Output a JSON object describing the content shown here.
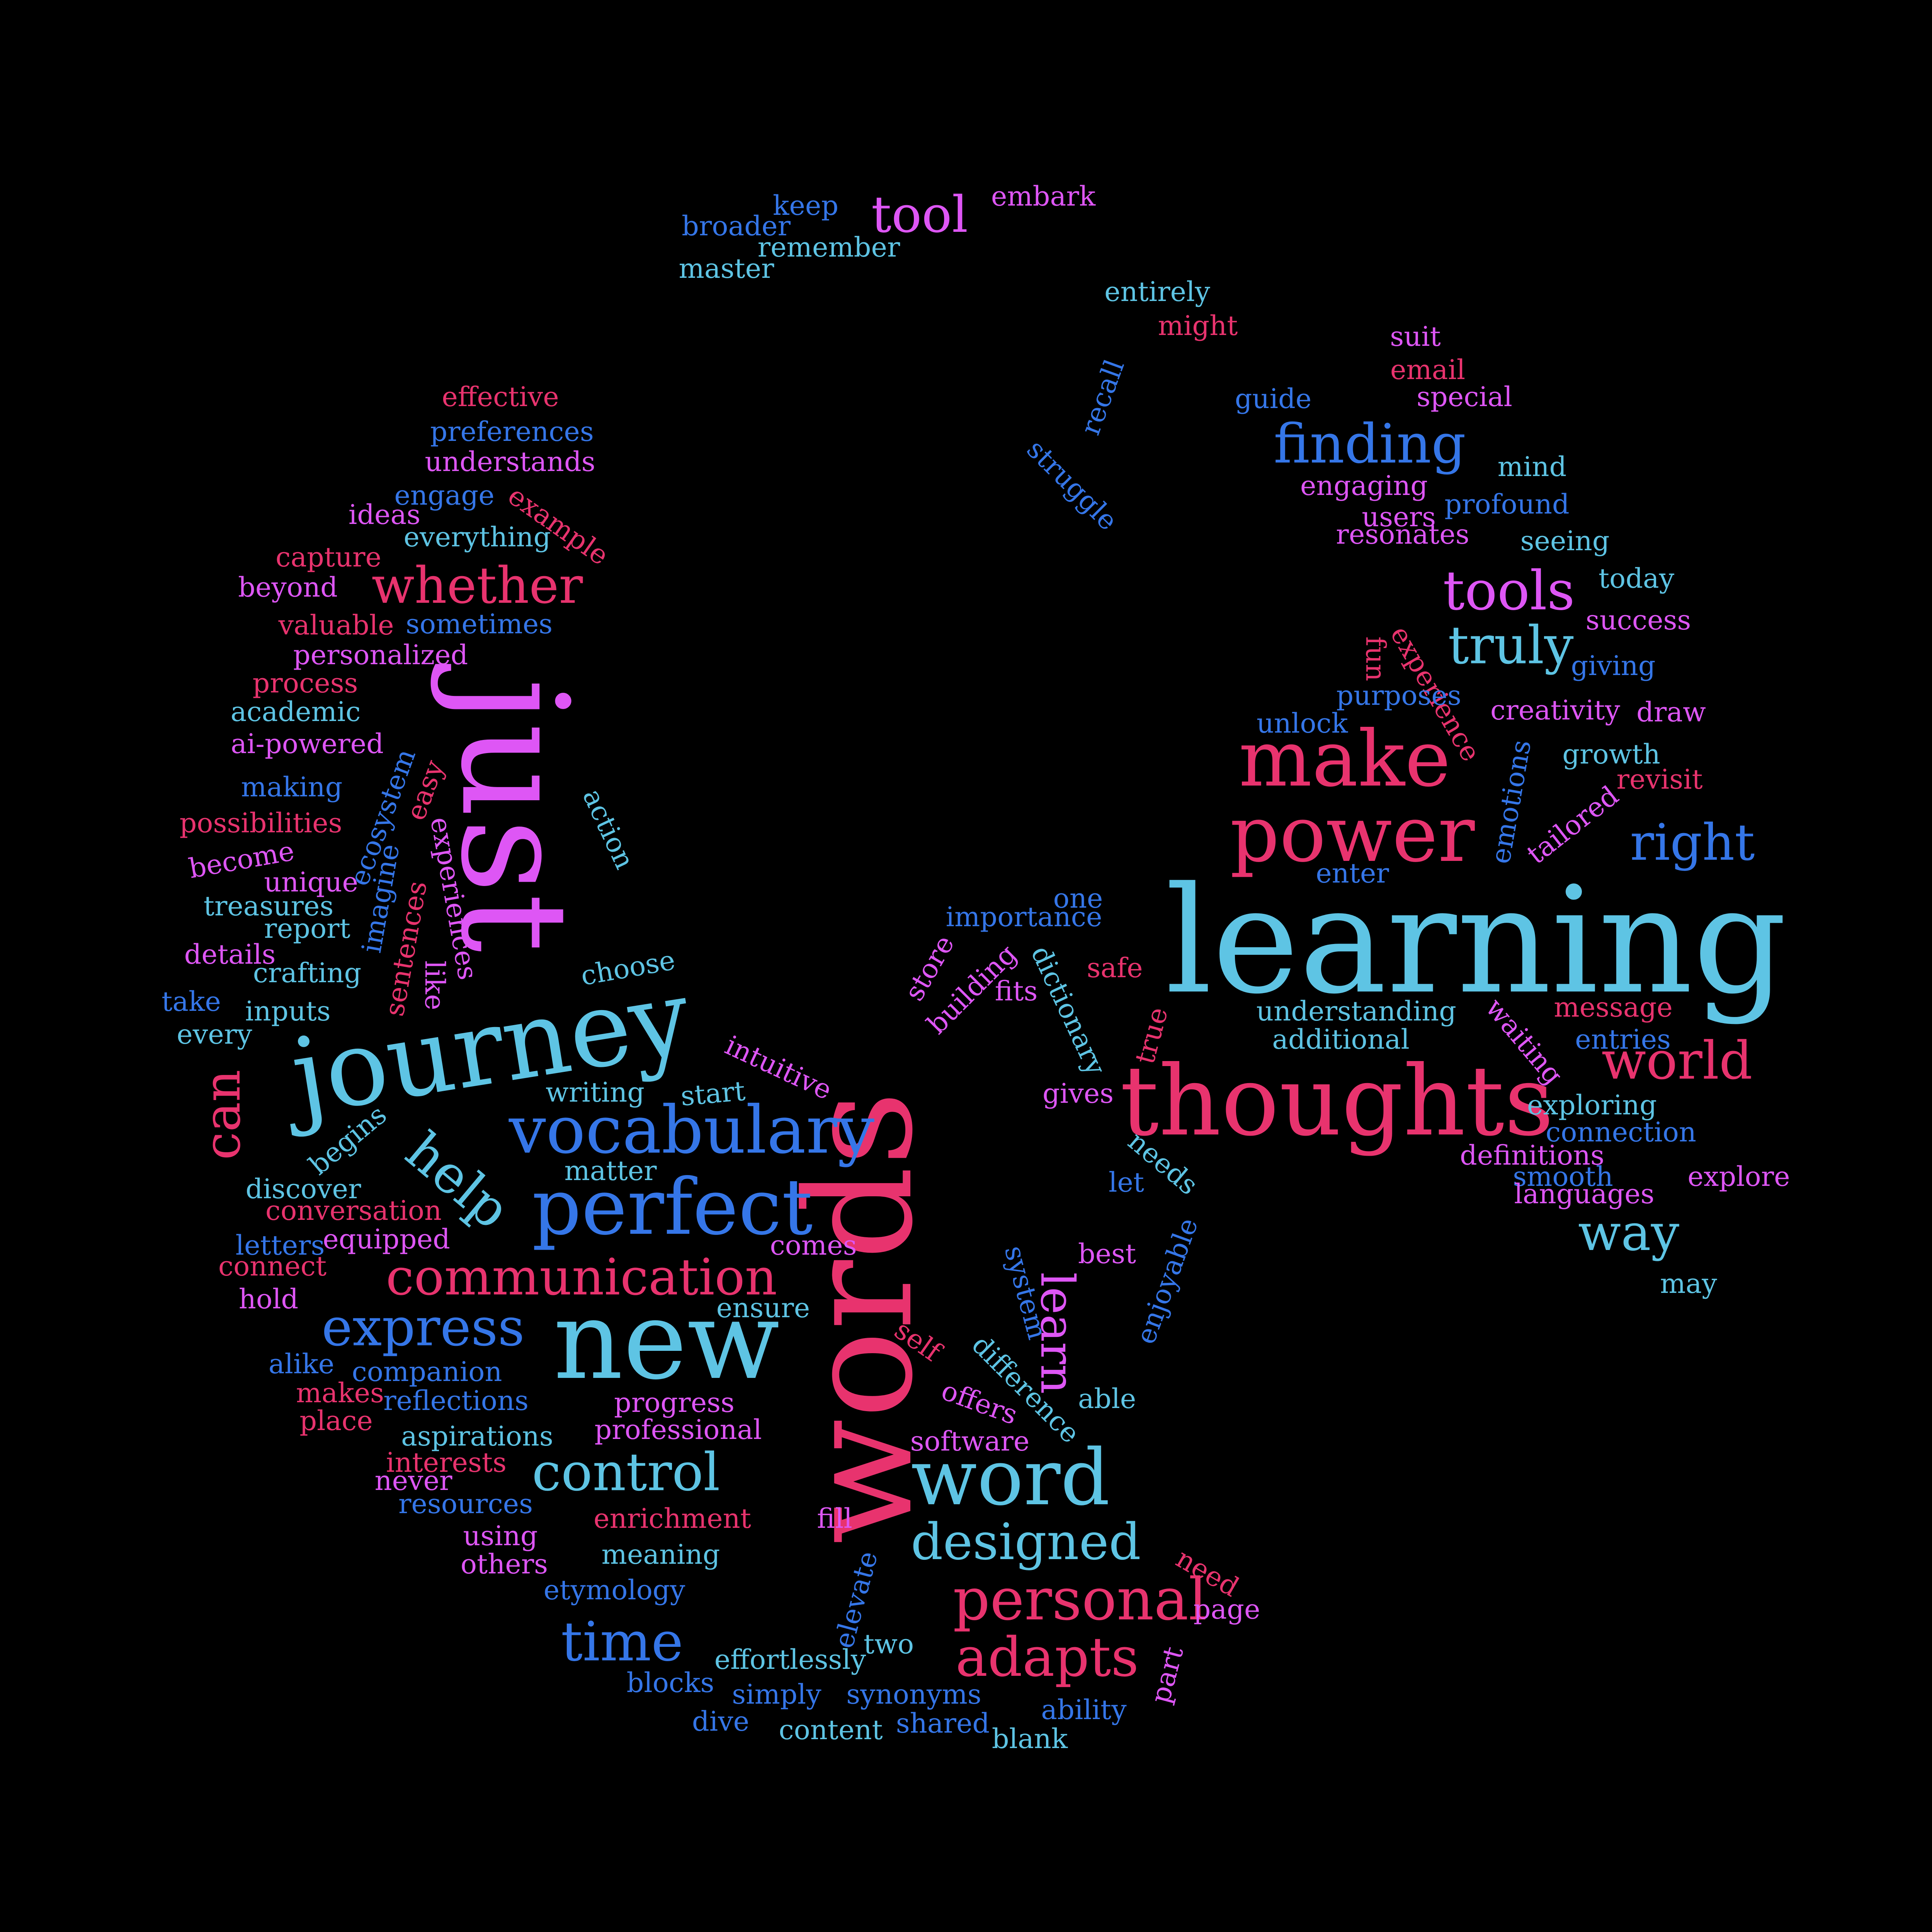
{
  "palette": {
    "background": "#000000",
    "sky": "#5ec4e4",
    "blue": "#3576e8",
    "pink": "#e8336e",
    "magenta": "#de56f5"
  },
  "words": [
    {
      "text": "learning",
      "color": "sky"
    },
    {
      "text": "words",
      "color": "pink"
    },
    {
      "text": "just",
      "color": "magenta"
    },
    {
      "text": "journey",
      "color": "sky"
    },
    {
      "text": "thoughts",
      "color": "pink"
    },
    {
      "text": "new",
      "color": "sky"
    },
    {
      "text": "perfect",
      "color": "blue"
    },
    {
      "text": "vocabulary",
      "color": "blue"
    },
    {
      "text": "make",
      "color": "pink"
    },
    {
      "text": "power",
      "color": "pink"
    },
    {
      "text": "word",
      "color": "sky"
    },
    {
      "text": "communication",
      "color": "pink"
    },
    {
      "text": "express",
      "color": "blue"
    },
    {
      "text": "control",
      "color": "sky"
    },
    {
      "text": "designed",
      "color": "sky"
    },
    {
      "text": "personal",
      "color": "pink"
    },
    {
      "text": "adapts",
      "color": "pink"
    },
    {
      "text": "time",
      "color": "blue"
    },
    {
      "text": "whether",
      "color": "pink"
    },
    {
      "text": "finding",
      "color": "blue"
    },
    {
      "text": "tools",
      "color": "magenta"
    },
    {
      "text": "truly",
      "color": "sky"
    },
    {
      "text": "right",
      "color": "blue"
    },
    {
      "text": "world",
      "color": "pink"
    },
    {
      "text": "way",
      "color": "sky"
    },
    {
      "text": "tool",
      "color": "magenta"
    },
    {
      "text": "can",
      "color": "pink"
    },
    {
      "text": "help",
      "color": "sky"
    },
    {
      "text": "learn",
      "color": "magenta"
    },
    {
      "text": "broader",
      "color": "blue"
    },
    {
      "text": "keep",
      "color": "blue"
    },
    {
      "text": "remember",
      "color": "sky"
    },
    {
      "text": "master",
      "color": "sky"
    },
    {
      "text": "embark",
      "color": "magenta"
    },
    {
      "text": "entirely",
      "color": "sky"
    },
    {
      "text": "might",
      "color": "pink"
    },
    {
      "text": "recall",
      "color": "blue"
    },
    {
      "text": "struggle",
      "color": "blue"
    },
    {
      "text": "suit",
      "color": "magenta"
    },
    {
      "text": "email",
      "color": "pink"
    },
    {
      "text": "special",
      "color": "magenta"
    },
    {
      "text": "guide",
      "color": "blue"
    },
    {
      "text": "mind",
      "color": "sky"
    },
    {
      "text": "engaging",
      "color": "magenta"
    },
    {
      "text": "profound",
      "color": "blue"
    },
    {
      "text": "users",
      "color": "magenta"
    },
    {
      "text": "resonates",
      "color": "magenta"
    },
    {
      "text": "seeing",
      "color": "sky"
    },
    {
      "text": "today",
      "color": "sky"
    },
    {
      "text": "success",
      "color": "magenta"
    },
    {
      "text": "giving",
      "color": "blue"
    },
    {
      "text": "fun",
      "color": "pink"
    },
    {
      "text": "experience",
      "color": "pink"
    },
    {
      "text": "purposes",
      "color": "blue"
    },
    {
      "text": "unlock",
      "color": "blue"
    },
    {
      "text": "creativity",
      "color": "magenta"
    },
    {
      "text": "draw",
      "color": "magenta"
    },
    {
      "text": "growth",
      "color": "sky"
    },
    {
      "text": "revisit",
      "color": "pink"
    },
    {
      "text": "emotions",
      "color": "blue"
    },
    {
      "text": "tailored",
      "color": "magenta"
    },
    {
      "text": "enter",
      "color": "blue"
    },
    {
      "text": "effective",
      "color": "pink"
    },
    {
      "text": "preferences",
      "color": "blue"
    },
    {
      "text": "understands",
      "color": "magenta"
    },
    {
      "text": "engage",
      "color": "blue"
    },
    {
      "text": "example",
      "color": "pink"
    },
    {
      "text": "ideas",
      "color": "magenta"
    },
    {
      "text": "everything",
      "color": "sky"
    },
    {
      "text": "capture",
      "color": "pink"
    },
    {
      "text": "beyond",
      "color": "magenta"
    },
    {
      "text": "valuable",
      "color": "pink"
    },
    {
      "text": "sometimes",
      "color": "blue"
    },
    {
      "text": "personalized",
      "color": "magenta"
    },
    {
      "text": "process",
      "color": "pink"
    },
    {
      "text": "academic",
      "color": "sky"
    },
    {
      "text": "ai-powered",
      "color": "magenta"
    },
    {
      "text": "making",
      "color": "blue"
    },
    {
      "text": "possibilities",
      "color": "pink"
    },
    {
      "text": "become",
      "color": "magenta"
    },
    {
      "text": "unique",
      "color": "magenta"
    },
    {
      "text": "treasures",
      "color": "sky"
    },
    {
      "text": "report",
      "color": "sky"
    },
    {
      "text": "details",
      "color": "magenta"
    },
    {
      "text": "crafting",
      "color": "sky"
    },
    {
      "text": "take",
      "color": "blue"
    },
    {
      "text": "inputs",
      "color": "sky"
    },
    {
      "text": "every",
      "color": "sky"
    },
    {
      "text": "ecosystem",
      "color": "blue"
    },
    {
      "text": "easy",
      "color": "pink"
    },
    {
      "text": "imagine",
      "color": "blue"
    },
    {
      "text": "experiences",
      "color": "magenta"
    },
    {
      "text": "sentences",
      "color": "pink"
    },
    {
      "text": "like",
      "color": "magenta"
    },
    {
      "text": "action",
      "color": "sky"
    },
    {
      "text": "choose",
      "color": "sky"
    },
    {
      "text": "intuitive",
      "color": "magenta"
    },
    {
      "text": "writing",
      "color": "sky"
    },
    {
      "text": "start",
      "color": "sky"
    },
    {
      "text": "begins",
      "color": "sky"
    },
    {
      "text": "matter",
      "color": "sky"
    },
    {
      "text": "discover",
      "color": "sky"
    },
    {
      "text": "conversation",
      "color": "pink"
    },
    {
      "text": "letters",
      "color": "blue"
    },
    {
      "text": "equipped",
      "color": "magenta"
    },
    {
      "text": "connect",
      "color": "pink"
    },
    {
      "text": "comes",
      "color": "magenta"
    },
    {
      "text": "hold",
      "color": "magenta"
    },
    {
      "text": "ensure",
      "color": "sky"
    },
    {
      "text": "alike",
      "color": "blue"
    },
    {
      "text": "companion",
      "color": "blue"
    },
    {
      "text": "makes",
      "color": "pink"
    },
    {
      "text": "reflections",
      "color": "blue"
    },
    {
      "text": "place",
      "color": "pink"
    },
    {
      "text": "progress",
      "color": "magenta"
    },
    {
      "text": "aspirations",
      "color": "sky"
    },
    {
      "text": "professional",
      "color": "magenta"
    },
    {
      "text": "interests",
      "color": "pink"
    },
    {
      "text": "never",
      "color": "magenta"
    },
    {
      "text": "resources",
      "color": "blue"
    },
    {
      "text": "enrichment",
      "color": "pink"
    },
    {
      "text": "using",
      "color": "magenta"
    },
    {
      "text": "meaning",
      "color": "sky"
    },
    {
      "text": "others",
      "color": "magenta"
    },
    {
      "text": "etymology",
      "color": "blue"
    },
    {
      "text": "blocks",
      "color": "blue"
    },
    {
      "text": "effortlessly",
      "color": "sky"
    },
    {
      "text": "simply",
      "color": "blue"
    },
    {
      "text": "synonyms",
      "color": "blue"
    },
    {
      "text": "dive",
      "color": "blue"
    },
    {
      "text": "content",
      "color": "sky"
    },
    {
      "text": "shared",
      "color": "blue"
    },
    {
      "text": "blank",
      "color": "sky"
    },
    {
      "text": "ability",
      "color": "blue"
    },
    {
      "text": "part",
      "color": "magenta"
    },
    {
      "text": "page",
      "color": "magenta"
    },
    {
      "text": "need",
      "color": "pink"
    },
    {
      "text": "two",
      "color": "sky"
    },
    {
      "text": "elevate",
      "color": "blue"
    },
    {
      "text": "fill",
      "color": "magenta"
    },
    {
      "text": "software",
      "color": "magenta"
    },
    {
      "text": "offers",
      "color": "magenta"
    },
    {
      "text": "able",
      "color": "sky"
    },
    {
      "text": "difference",
      "color": "sky"
    },
    {
      "text": "self",
      "color": "pink"
    },
    {
      "text": "system",
      "color": "blue"
    },
    {
      "text": "best",
      "color": "magenta"
    },
    {
      "text": "enjoyable",
      "color": "blue"
    },
    {
      "text": "let",
      "color": "blue"
    },
    {
      "text": "needs",
      "color": "sky"
    },
    {
      "text": "gives",
      "color": "magenta"
    },
    {
      "text": "true",
      "color": "pink"
    },
    {
      "text": "dictionary",
      "color": "sky"
    },
    {
      "text": "fits",
      "color": "magenta"
    },
    {
      "text": "building",
      "color": "magenta"
    },
    {
      "text": "store",
      "color": "magenta"
    },
    {
      "text": "importance",
      "color": "blue"
    },
    {
      "text": "one",
      "color": "blue"
    },
    {
      "text": "safe",
      "color": "pink"
    },
    {
      "text": "understanding",
      "color": "sky"
    },
    {
      "text": "additional",
      "color": "sky"
    },
    {
      "text": "waiting",
      "color": "magenta"
    },
    {
      "text": "message",
      "color": "pink"
    },
    {
      "text": "entries",
      "color": "blue"
    },
    {
      "text": "exploring",
      "color": "sky"
    },
    {
      "text": "connection",
      "color": "blue"
    },
    {
      "text": "definitions",
      "color": "magenta"
    },
    {
      "text": "smooth",
      "color": "blue"
    },
    {
      "text": "explore",
      "color": "magenta"
    },
    {
      "text": "languages",
      "color": "magenta"
    },
    {
      "text": "may",
      "color": "sky"
    }
  ]
}
